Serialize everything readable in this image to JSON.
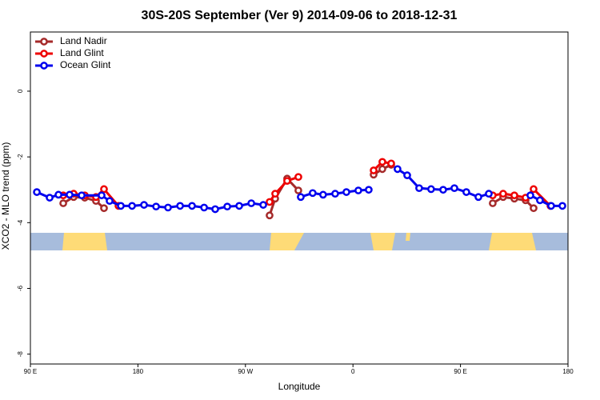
{
  "chart_data": {
    "type": "line",
    "title": "30S-20S September (Ver 9)   2014-09-06 to 2018-12-31",
    "x_label": "Longitude",
    "y_label": "XCO2 - MLO trend (ppm)",
    "xlim": [
      90,
      540
    ],
    "ylim": [
      -8.3,
      1.8
    ],
    "xticks": [
      {
        "value": 90,
        "label": "90 E"
      },
      180,
      {
        "value": 270,
        "label": "90 W"
      },
      {
        "value": 360,
        "label": "0"
      },
      {
        "value": 450,
        "label": "90 E"
      },
      {
        "value": 540,
        "label": "180"
      }
    ],
    "yticks": [
      0,
      -2,
      -4,
      -6,
      -8
    ],
    "legend": "top-left",
    "series": [
      {
        "name": "Land Nadir",
        "color": "#a52a2a",
        "x": [
          117.5,
          126.2,
          135.5,
          144.9,
          151.6,
          null,
          290.2,
          294.9,
          304.9,
          314.3,
          null,
          377.3,
          384.6,
          392.0,
          null,
          477.0,
          485.7,
          495.1,
          504.5,
          511.2
        ],
        "values": [
          -3.41,
          -3.22,
          -3.24,
          -3.34,
          -3.56,
          null,
          -3.78,
          -3.27,
          -2.66,
          -3.02,
          null,
          -2.54,
          -2.37,
          -2.24,
          null,
          -3.41,
          -3.22,
          -3.27,
          -3.32,
          -3.56
        ]
      },
      {
        "name": "Land Glint",
        "color": "#ee0000",
        "x": [
          117.5,
          126.2,
          135.5,
          144.9,
          151.6,
          163.7,
          null,
          290.2,
          294.9,
          304.9,
          314.3,
          null,
          377.3,
          384.6,
          392.0,
          null,
          477.0,
          485.7,
          495.1,
          504.5,
          511.2,
          525.3
        ],
        "values": [
          -3.17,
          -3.12,
          -3.17,
          -3.22,
          -2.98,
          -3.49,
          null,
          -3.37,
          -3.12,
          -2.73,
          -2.61,
          null,
          -2.41,
          -2.15,
          -2.2,
          null,
          -3.17,
          -3.12,
          -3.17,
          -3.24,
          -2.98,
          -3.49
        ]
      },
      {
        "name": "Ocean Glint",
        "color": "#0000ee",
        "x": [
          95.4,
          106.1,
          113.5,
          122.8,
          132.9,
          149.6,
          156.3,
          165.7,
          175.1,
          185.1,
          195.2,
          205.2,
          215.3,
          225.3,
          235.4,
          244.7,
          254.8,
          264.8,
          274.9,
          284.9,
          null,
          316.3,
          326.3,
          335.0,
          345.1,
          354.5,
          364.5,
          373.2,
          null,
          397.3,
          405.4,
          415.4,
          425.4,
          435.5,
          444.9,
          454.9,
          465.0,
          473.7,
          null,
          508.5,
          516.5,
          525.9,
          535.3
        ],
        "values": [
          -3.07,
          -3.24,
          -3.15,
          -3.15,
          -3.17,
          -3.17,
          -3.34,
          -3.49,
          -3.49,
          -3.46,
          -3.51,
          -3.54,
          -3.49,
          -3.49,
          -3.54,
          -3.59,
          -3.51,
          -3.49,
          -3.41,
          -3.46,
          null,
          -3.22,
          -3.1,
          -3.15,
          -3.12,
          -3.07,
          -3.02,
          -3.0,
          null,
          -2.37,
          -2.56,
          -2.95,
          -2.98,
          -3.0,
          -2.95,
          -3.07,
          -3.22,
          -3.12,
          null,
          -3.17,
          -3.32,
          -3.49,
          -3.49
        ]
      }
    ]
  }
}
